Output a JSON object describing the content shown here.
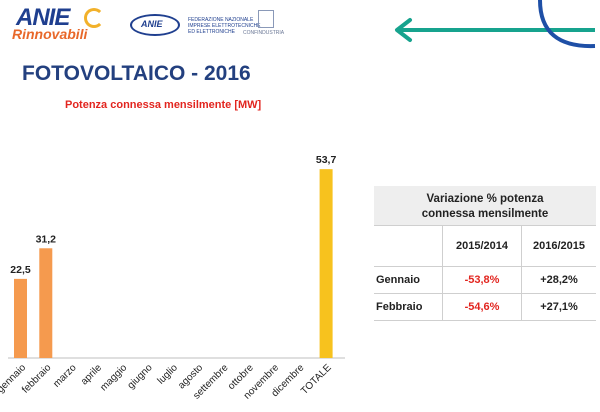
{
  "header": {
    "anie_word": "ANIE",
    "rinnovabili_word": "Rinnovabili",
    "fed_badge": "ANIE",
    "fed_name": "FEDERAZIONE NAZIONALE IMPRESE ELETTROTECNICHE ED ELETTRONICHE",
    "confindustria": "CONFINDUSTRIA"
  },
  "page": {
    "title": "FOTOVOLTAICO - 2016",
    "subtitle": "Potenza connessa mensilmente [MW]"
  },
  "chart_data": {
    "type": "bar",
    "title": "Potenza connessa mensilmente [MW]",
    "categories": [
      "gennaio",
      "febbraio",
      "marzo",
      "aprile",
      "maggio",
      "giugno",
      "luglio",
      "agosto",
      "settembre",
      "ottobre",
      "novembre",
      "dicembre",
      "TOTALE"
    ],
    "values": [
      22.5,
      31.2,
      null,
      null,
      null,
      null,
      null,
      null,
      null,
      null,
      null,
      null,
      53.7
    ],
    "value_labels": [
      "22,5",
      "31,2",
      "",
      "",
      "",
      "",
      "",
      "",
      "",
      "",
      "",
      "",
      "53,7"
    ],
    "colors": [
      "#f59a4e",
      "#f59a4e",
      "#f59a4e",
      "#f59a4e",
      "#f59a4e",
      "#f59a4e",
      "#f59a4e",
      "#f59a4e",
      "#f59a4e",
      "#f59a4e",
      "#f59a4e",
      "#f59a4e",
      "#f7c21e"
    ],
    "ylim": [
      0,
      60
    ],
    "grid": false,
    "legend": "none",
    "xlabel": "",
    "ylabel": ""
  },
  "variation_table": {
    "title_line1": "Variazione % potenza",
    "title_line2": "connessa mensilmente",
    "col1": "2015/2014",
    "col2": "2016/2015",
    "rows": [
      {
        "label": "Gennaio",
        "v1": "-53,8%",
        "v2": "+28,2%"
      },
      {
        "label": "Febbraio",
        "v1": "-54,6%",
        "v2": "+27,1%"
      }
    ],
    "negative_color": "#e2251f"
  },
  "colors": {
    "title": "#23407f",
    "accent_red": "#e2251f",
    "teal": "#17a38e",
    "blue": "#1e4fa6"
  }
}
